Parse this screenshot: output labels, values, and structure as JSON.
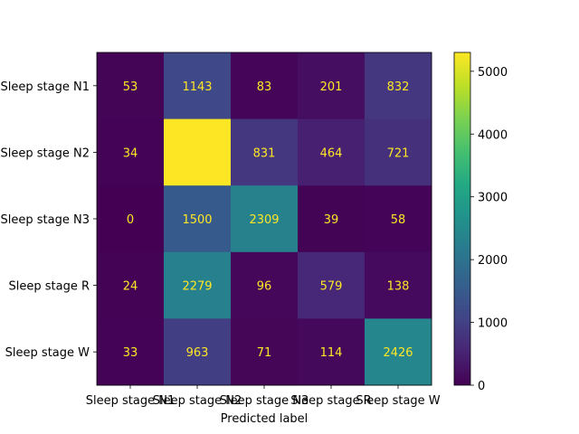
{
  "chart_data": {
    "type": "heatmap",
    "xlabel": "Predicted label",
    "ylabel": "",
    "x_categories": [
      "Sleep stage N1",
      "Sleep stage N2",
      "Sleep stage N3",
      "Sleep stage R",
      "Sleep stage W"
    ],
    "y_categories": [
      "Sleep stage N1",
      "Sleep stage N2",
      "Sleep stage N3",
      "Sleep stage R",
      "Sleep stage W"
    ],
    "matrix": [
      [
        53,
        1143,
        83,
        201,
        832
      ],
      [
        34,
        5300,
        831,
        464,
        721
      ],
      [
        0,
        1500,
        2309,
        39,
        58
      ],
      [
        24,
        2279,
        96,
        579,
        138
      ],
      [
        33,
        963,
        71,
        114,
        2426
      ]
    ],
    "colormap": "viridis",
    "colorbar": {
      "min": 0,
      "max": 5300,
      "ticks": [
        0,
        1000,
        2000,
        3000,
        4000,
        5000
      ]
    },
    "annotation_color": "#fde725"
  }
}
